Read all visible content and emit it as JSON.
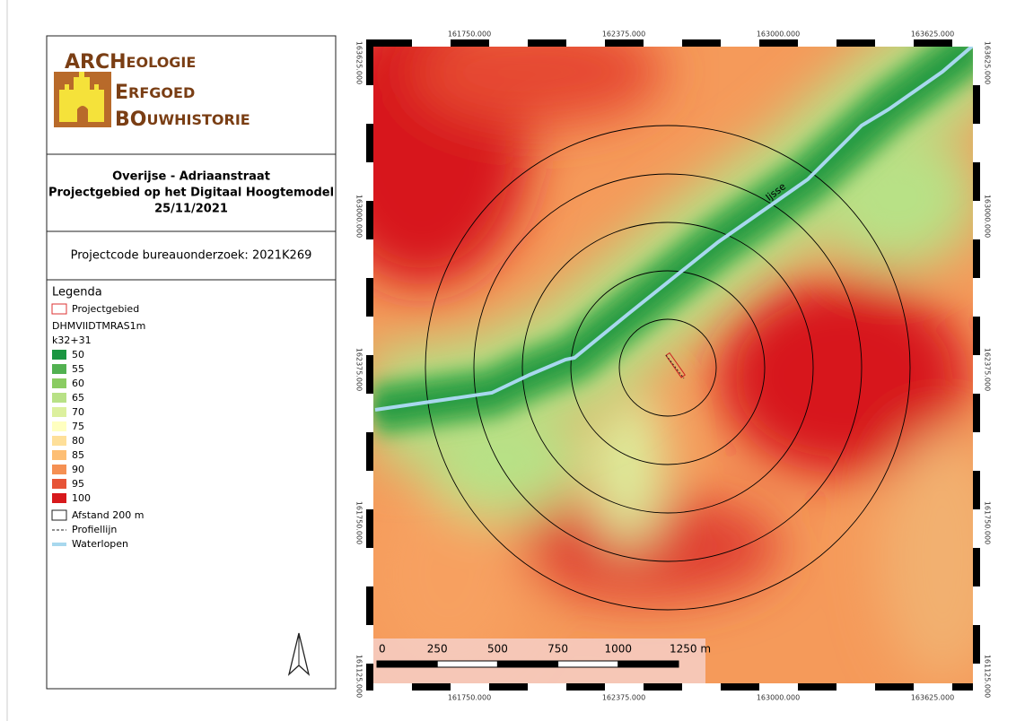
{
  "logo": {
    "lines": [
      {
        "big": "ARCH",
        "rest": "EOLOGIE"
      },
      {
        "big": "E",
        "rest": "RFGOED"
      },
      {
        "big": "BO",
        "rest": "UWHISTORIE"
      }
    ]
  },
  "title": {
    "line1": "Overijse - Adriaanstraat",
    "line2": "Projectgebied op het Digitaal Hoogtemodel",
    "line3": "25/11/2021"
  },
  "project_code": "Projectcode bureauonderzoek: 2021K269",
  "legend": {
    "title": "Legenda",
    "project_area": "Projectgebied",
    "layer": "DHMVIIDTMRAS1m",
    "band": "k32+31",
    "classes": [
      {
        "label": "50",
        "color": "#1a9641"
      },
      {
        "label": "55",
        "color": "#52b151"
      },
      {
        "label": "60",
        "color": "#8acc62"
      },
      {
        "label": "65",
        "color": "#b8e186"
      },
      {
        "label": "70",
        "color": "#dcf09e"
      },
      {
        "label": "75",
        "color": "#ffffc0"
      },
      {
        "label": "80",
        "color": "#fedf99"
      },
      {
        "label": "85",
        "color": "#fdbe74"
      },
      {
        "label": "90",
        "color": "#f59053"
      },
      {
        "label": "95",
        "color": "#e75437"
      },
      {
        "label": "100",
        "color": "#d7191c"
      }
    ],
    "distance": "Afstand 200 m",
    "profile": "Profiellijn",
    "waterways": "Waterlopen"
  },
  "map": {
    "x_labels": [
      "161750.000",
      "162375.000",
      "163000.000",
      "163625.000"
    ],
    "y_labels": [
      "163625.000",
      "163000.000",
      "162375.000",
      "161750.000",
      "161125.000"
    ],
    "river_label": "Ijsse",
    "scalebar": [
      "0",
      "250",
      "500",
      "750",
      "1000",
      "1250 m"
    ]
  }
}
